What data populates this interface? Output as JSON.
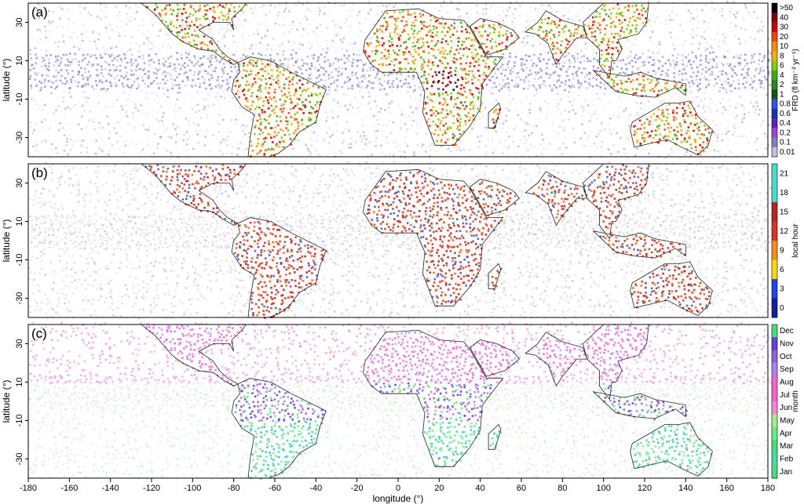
{
  "figure": {
    "panel_labels": [
      "(a)",
      "(b)",
      "(c)"
    ],
    "ylabel": "latitude (°)",
    "xlabel": "longitude (°)",
    "lat_ticks": [
      "30",
      "10",
      "-10",
      "-30"
    ],
    "lon_ticks": [
      "-180",
      "-160",
      "-140",
      "-120",
      "-100",
      "-80",
      "-60",
      "-40",
      "-20",
      "0",
      "20",
      "40",
      "60",
      "80",
      "100",
      "120",
      "140",
      "160",
      "180"
    ]
  },
  "panels": [
    {
      "id": "a",
      "colorbar_label": "FRD (fl km⁻² yr⁻¹)",
      "colorbar_ticks": [
        ">50",
        "40",
        "30",
        "20",
        "10",
        "8",
        "6",
        "4",
        "2",
        "1",
        "0.8",
        "0.6",
        "0.4",
        "0.2",
        "0.1",
        "0.01"
      ],
      "colors": [
        "#000000",
        "#8b0000",
        "#d40000",
        "#ff4000",
        "#ff8c00",
        "#ffb000",
        "#7fd000",
        "#3fb000",
        "#1e8c1e",
        "#0a5a0a",
        "#3050ff",
        "#1030c0",
        "#6020c0",
        "#a040e0",
        "#8080c0",
        "#c0c0e0"
      ]
    },
    {
      "id": "b",
      "colorbar_label": "local hour",
      "colorbar_ticks": [
        "21",
        "18",
        "15",
        "12",
        "9",
        "6",
        "3",
        "0"
      ],
      "colors": [
        "#40e0d0",
        "#40e0d0",
        "#c02020",
        "#e03020",
        "#ff8c00",
        "#ffd700",
        "#2040ff",
        "#1020a0"
      ]
    },
    {
      "id": "c",
      "colorbar_label": "month",
      "colorbar_ticks": [
        "Dec",
        "Nov",
        "Oct",
        "Sep",
        "Aug",
        "Jul",
        "Jun",
        "May",
        "Apr",
        "Mar",
        "Feb",
        "Jan"
      ],
      "colors": [
        "#40e080",
        "#6040e0",
        "#9060e0",
        "#b080f0",
        "#ff60d0",
        "#ff60d0",
        "#ff80e0",
        "#a0f080",
        "#60f080",
        "#40e080",
        "#40e0a0",
        "#40e080"
      ]
    }
  ]
}
